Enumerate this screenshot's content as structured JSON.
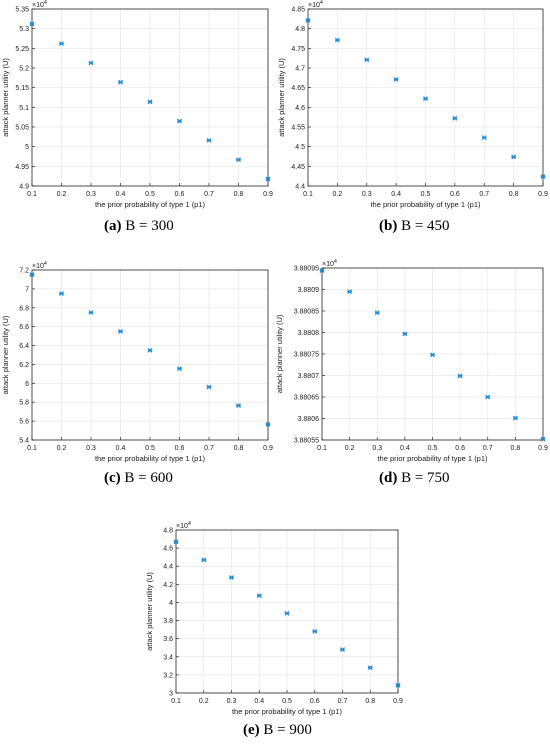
{
  "figure": {
    "captions": [
      {
        "label": "(a)",
        "text": " B = 300"
      },
      {
        "label": "(b)",
        "text": " B = 450"
      },
      {
        "label": "(c)",
        "text": " B = 600"
      },
      {
        "label": "(d)",
        "text": " B = 750"
      },
      {
        "label": "(e)",
        "text": " B = 900"
      }
    ]
  },
  "colors": {
    "marker": "#1f8ad6",
    "grid": "#e6e6e6",
    "axis": "#262626"
  },
  "chart_data": [
    {
      "type": "scatter",
      "xlabel": "the prior probability of type 1 (p1)",
      "ylabel": "attack planner utility (U)",
      "exponent_label": "×10",
      "exponent": "4",
      "x": [
        0.1,
        0.2,
        0.3,
        0.4,
        0.5,
        0.6,
        0.7,
        0.8,
        0.9
      ],
      "y": [
        5.312,
        5.262,
        5.213,
        5.164,
        5.114,
        5.065,
        5.016,
        4.967,
        4.918
      ],
      "xlim": [
        0.1,
        0.9
      ],
      "ylim": [
        4.9,
        5.35
      ],
      "xticks": [
        "0.1",
        "0.2",
        "0.3",
        "0.4",
        "0.5",
        "0.6",
        "0.7",
        "0.8",
        "0.9"
      ],
      "yticks": [
        "4.9",
        "4.95",
        "5",
        "5.05",
        "5.1",
        "5.15",
        "5.2",
        "5.25",
        "5.3",
        "5.35"
      ],
      "grid": true
    },
    {
      "type": "scatter",
      "xlabel": "the prior probability of type 1 (p1)",
      "ylabel": "attack planner utility (U)",
      "exponent_label": "×10",
      "exponent": "4",
      "x": [
        0.1,
        0.2,
        0.3,
        0.4,
        0.5,
        0.6,
        0.7,
        0.8,
        0.9
      ],
      "y": [
        4.821,
        4.771,
        4.721,
        4.671,
        4.622,
        4.572,
        4.523,
        4.474,
        4.424
      ],
      "xlim": [
        0.1,
        0.9
      ],
      "ylim": [
        4.4,
        4.85
      ],
      "xticks": [
        "0.1",
        "0.2",
        "0.3",
        "0.4",
        "0.5",
        "0.6",
        "0.7",
        "0.8",
        "0.9"
      ],
      "yticks": [
        "4.4",
        "4.45",
        "4.5",
        "4.55",
        "4.6",
        "4.65",
        "4.7",
        "4.75",
        "4.8",
        "4.85"
      ],
      "grid": true
    },
    {
      "type": "scatter",
      "xlabel": "the prior probability of type 1 (p1)",
      "ylabel": "attack planner utility (U)",
      "exponent_label": "×10",
      "exponent": "4",
      "x": [
        0.1,
        0.2,
        0.3,
        0.4,
        0.5,
        0.6,
        0.7,
        0.8,
        0.9
      ],
      "y": [
        7.15,
        6.95,
        6.75,
        6.55,
        6.35,
        6.155,
        5.96,
        5.765,
        5.565
      ],
      "xlim": [
        0.1,
        0.9
      ],
      "ylim": [
        5.4,
        7.2
      ],
      "xticks": [
        "0.1",
        "0.2",
        "0.3",
        "0.4",
        "0.5",
        "0.6",
        "0.7",
        "0.8",
        "0.9"
      ],
      "yticks": [
        "5.4",
        "5.6",
        "5.8",
        "6",
        "6.2",
        "6.4",
        "6.6",
        "6.8",
        "7",
        "7.2"
      ],
      "grid": true
    },
    {
      "type": "scatter",
      "xlabel": "the prior probability of type 1 (p1)",
      "ylabel": "attack planner utility (U)",
      "exponent_label": "×10",
      "exponent": "4",
      "x": [
        0.1,
        0.2,
        0.3,
        0.4,
        0.5,
        0.6,
        0.7,
        0.8,
        0.9
      ],
      "y": [
        3.880944,
        3.880895,
        3.880846,
        3.880797,
        3.880748,
        3.880699,
        3.88065,
        3.880601,
        3.880552
      ],
      "xlim": [
        0.1,
        0.9
      ],
      "ylim": [
        3.88055,
        3.88095
      ],
      "xticks": [
        "0.1",
        "0.2",
        "0.3",
        "0.4",
        "0.5",
        "0.6",
        "0.7",
        "0.8",
        "0.9"
      ],
      "yticks": [
        "3.88055",
        "3.8806",
        "3.88065",
        "3.8807",
        "3.88075",
        "3.8808",
        "3.88085",
        "3.8809",
        "3.88095"
      ],
      "grid": true
    },
    {
      "type": "scatter",
      "xlabel": "the prior probability of type 1 (p1)",
      "ylabel": "attack planner utility (U)",
      "exponent_label": "×10",
      "exponent": "4",
      "x": [
        0.1,
        0.2,
        0.3,
        0.4,
        0.5,
        0.6,
        0.7,
        0.8,
        0.9
      ],
      "y": [
        4.67,
        4.47,
        4.275,
        4.075,
        3.88,
        3.68,
        3.48,
        3.28,
        3.085
      ],
      "xlim": [
        0.1,
        0.9
      ],
      "ylim": [
        3.0,
        4.8
      ],
      "xticks": [
        "0.1",
        "0.2",
        "0.3",
        "0.4",
        "0.5",
        "0.6",
        "0.7",
        "0.8",
        "0.9"
      ],
      "yticks": [
        "3",
        "3.2",
        "3.4",
        "3.6",
        "3.8",
        "4",
        "4.2",
        "4.4",
        "4.6",
        "4.8"
      ],
      "grid": true
    }
  ]
}
